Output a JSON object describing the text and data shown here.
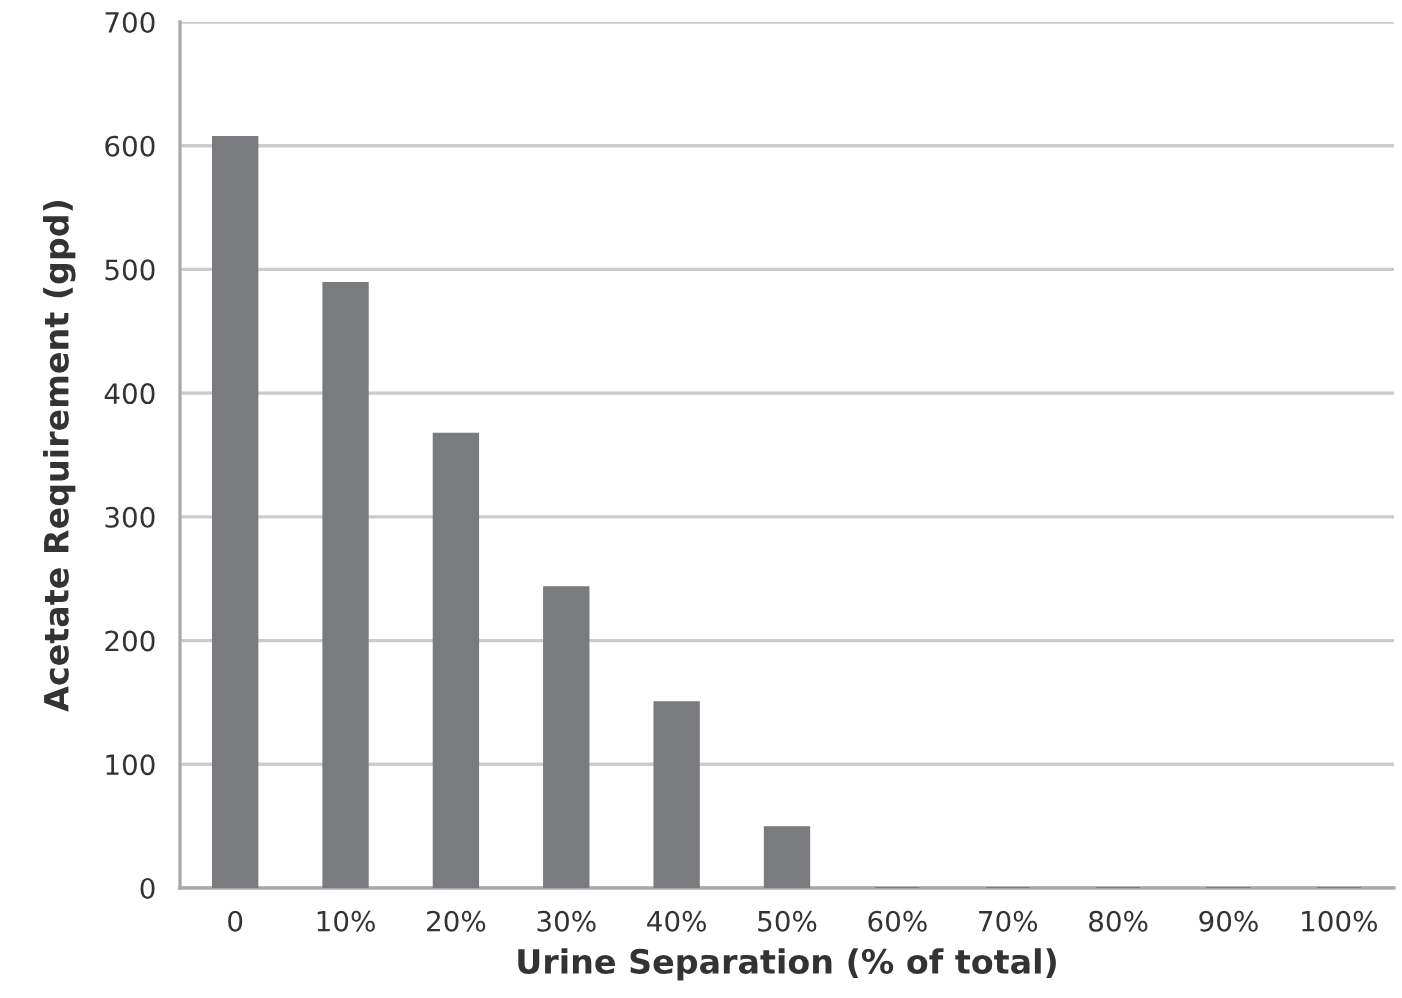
{
  "chart_data": {
    "type": "bar",
    "xlabel": "Urine Separation (% of total)",
    "ylabel": "Acetate Requirement (gpd)",
    "categories": [
      "0",
      "10%",
      "20%",
      "30%",
      "40%",
      "50%",
      "60%",
      "70%",
      "80%",
      "90%",
      "100%"
    ],
    "values": [
      607,
      489,
      367,
      243,
      150,
      49,
      0,
      0,
      0,
      0,
      0
    ],
    "color": "#7a7b7f",
    "ylim": [
      0,
      700
    ],
    "yticks": [
      0,
      100,
      200,
      300,
      400,
      500,
      600,
      700
    ],
    "grid": "y",
    "legend": false
  }
}
